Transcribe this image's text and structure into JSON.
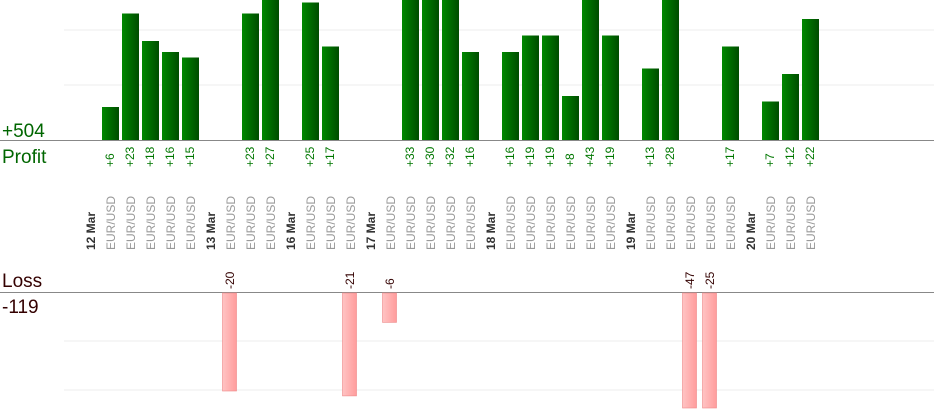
{
  "chart_data": {
    "type": "bar",
    "profit_total_label": "+504",
    "profit_label": "Profit",
    "loss_label": "Loss",
    "loss_total_label": "-119",
    "profit_ylim": [
      0,
      25.5
    ],
    "loss_ylim": [
      0,
      -23.5
    ],
    "grid": true,
    "colors": {
      "profit": "#006600",
      "loss": "#ffaaaa",
      "profit_text": "#007700",
      "loss_text": "#330000",
      "symbol_text": "#999999",
      "date_text": "#333333"
    },
    "groups": [
      {
        "date": "12 Mar",
        "trades": [
          {
            "symbol": "EUR/USD",
            "value": 6,
            "label": "+6"
          },
          {
            "symbol": "EUR/USD",
            "value": 23,
            "label": "+23"
          },
          {
            "symbol": "EUR/USD",
            "value": 18,
            "label": "+18"
          },
          {
            "symbol": "EUR/USD",
            "value": 16,
            "label": "+16"
          },
          {
            "symbol": "EUR/USD",
            "value": 15,
            "label": "+15"
          }
        ]
      },
      {
        "date": "13 Mar",
        "trades": [
          {
            "symbol": "EUR/USD",
            "value": -20,
            "label": "-20"
          },
          {
            "symbol": "EUR/USD",
            "value": 23,
            "label": "+23"
          },
          {
            "symbol": "EUR/USD",
            "value": 27,
            "label": "+27"
          }
        ]
      },
      {
        "date": "16 Mar",
        "trades": [
          {
            "symbol": "EUR/USD",
            "value": 25,
            "label": "+25"
          },
          {
            "symbol": "EUR/USD",
            "value": 17,
            "label": "+17"
          },
          {
            "symbol": "EUR/USD",
            "value": -21,
            "label": "-21"
          }
        ]
      },
      {
        "date": "17 Mar",
        "trades": [
          {
            "symbol": "EUR/USD",
            "value": -6,
            "label": "-6"
          },
          {
            "symbol": "EUR/USD",
            "value": 33,
            "label": "+33"
          },
          {
            "symbol": "EUR/USD",
            "value": 30,
            "label": "+30"
          },
          {
            "symbol": "EUR/USD",
            "value": 32,
            "label": "+32"
          },
          {
            "symbol": "EUR/USD",
            "value": 16,
            "label": "+16"
          }
        ]
      },
      {
        "date": "18 Mar",
        "trades": [
          {
            "symbol": "EUR/USD",
            "value": 16,
            "label": "+16"
          },
          {
            "symbol": "EUR/USD",
            "value": 19,
            "label": "+19"
          },
          {
            "symbol": "EUR/USD",
            "value": 19,
            "label": "+19"
          },
          {
            "symbol": "EUR/USD",
            "value": 8,
            "label": "+8"
          },
          {
            "symbol": "EUR/USD",
            "value": 43,
            "label": "+43"
          },
          {
            "symbol": "EUR/USD",
            "value": 19,
            "label": "+19"
          }
        ]
      },
      {
        "date": "19 Mar",
        "trades": [
          {
            "symbol": "EUR/USD",
            "value": 13,
            "label": "+13"
          },
          {
            "symbol": "EUR/USD",
            "value": 28,
            "label": "+28"
          },
          {
            "symbol": "EUR/USD",
            "value": -47,
            "label": "-47"
          },
          {
            "symbol": "EUR/USD",
            "value": -25,
            "label": "-25"
          },
          {
            "symbol": "EUR/USD",
            "value": 17,
            "label": "+17"
          }
        ]
      },
      {
        "date": "20 Mar",
        "trades": [
          {
            "symbol": "EUR/USD",
            "value": 7,
            "label": "+7"
          },
          {
            "symbol": "EUR/USD",
            "value": 12,
            "label": "+12"
          },
          {
            "symbol": "EUR/USD",
            "value": 22,
            "label": "+22"
          }
        ]
      }
    ]
  }
}
